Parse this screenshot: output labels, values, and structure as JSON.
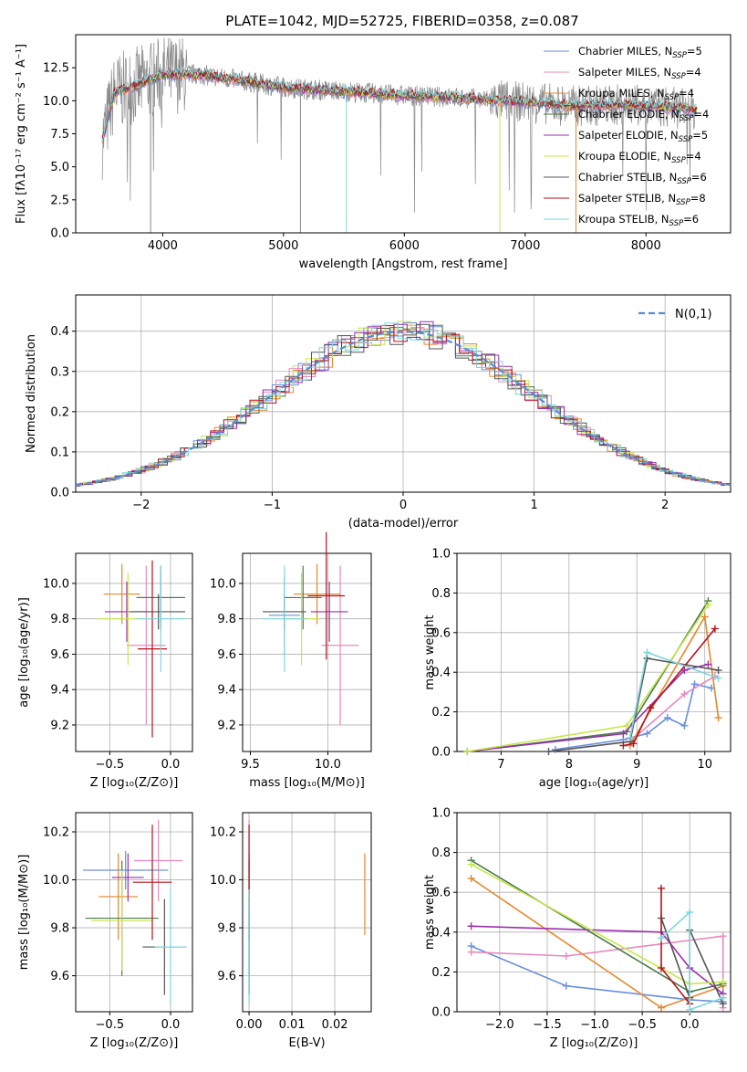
{
  "figure": {
    "title": "PLATE=1042, MJD=52725, FIBERID=0358, z=0.087"
  },
  "colors": {
    "Chabrier MILES": "#6a8fdc",
    "Salpeter MILES": "#e889bd",
    "Kroupa MILES": "#e6862a",
    "Chabrier ELODIE": "#4a7a4a",
    "Salpeter ELODIE": "#9b2fae",
    "Kroupa ELODIE": "#c8e64a",
    "Chabrier STELIB": "#555555",
    "Salpeter STELIB": "#b5121b",
    "Kroupa STELIB": "#7fd6de",
    "normal": "#5b8bd4"
  },
  "models": [
    {
      "key": "Chabrier MILES",
      "label": "Chabrier MILES, N",
      "sub": "SSP",
      "val": "=5"
    },
    {
      "key": "Salpeter MILES",
      "label": "Salpeter MILES, N",
      "sub": "SSP",
      "val": "=4"
    },
    {
      "key": "Kroupa MILES",
      "label": "Kroupa MILES, N",
      "sub": "SSP",
      "val": "=4"
    },
    {
      "key": "Chabrier ELODIE",
      "label": "Chabrier ELODIE, N",
      "sub": "SSP",
      "val": "=4"
    },
    {
      "key": "Salpeter ELODIE",
      "label": "Salpeter ELODIE, N",
      "sub": "SSP",
      "val": "=5"
    },
    {
      "key": "Kroupa ELODIE",
      "label": "Kroupa ELODIE, N",
      "sub": "SSP",
      "val": "=4"
    },
    {
      "key": "Chabrier STELIB",
      "label": "Chabrier STELIB, N",
      "sub": "SSP",
      "val": "=6"
    },
    {
      "key": "Salpeter STELIB",
      "label": "Salpeter STELIB, N",
      "sub": "SSP",
      "val": "=8"
    },
    {
      "key": "Kroupa STELIB",
      "label": "Kroupa STELIB, N",
      "sub": "SSP",
      "val": "=6"
    }
  ],
  "chart_data": [
    {
      "type": "line",
      "name": "spectrum",
      "xlabel": "wavelength [Angstrom, rest frame]",
      "ylabel": "Flux [fλ10⁻¹⁷ erg cm⁻² s⁻¹ A⁻¹]",
      "xlim": [
        3280,
        8700
      ],
      "ylim": [
        0,
        15
      ],
      "xticks": [
        4000,
        5000,
        6000,
        7000,
        8000
      ],
      "yticks": [
        0.0,
        2.5,
        5.0,
        7.5,
        10.0,
        12.5
      ],
      "continuum": {
        "x": [
          3500,
          3600,
          3800,
          4000,
          4300,
          4600,
          5000,
          5500,
          6000,
          6500,
          7000,
          7400,
          7800,
          8200,
          8400
        ],
        "y": [
          7.0,
          10.6,
          11.2,
          12.0,
          12.0,
          11.6,
          11.0,
          10.7,
          10.4,
          10.2,
          9.9,
          9.6,
          9.7,
          9.5,
          9.3
        ]
      }
    },
    {
      "type": "line",
      "name": "residual histogram",
      "xlabel": "(data-model)/error",
      "ylabel": "Normed distribution",
      "xlim": [
        -2.5,
        2.5
      ],
      "ylim": [
        0,
        0.49
      ],
      "xticks": [
        -2,
        -1,
        0,
        1,
        2
      ],
      "yticks": [
        0.0,
        0.1,
        0.2,
        0.3,
        0.4
      ],
      "legend": "N(0,1)"
    },
    {
      "type": "scatter",
      "name": "age vs Z",
      "xlabel": "Z [log₁₀(Z/Z⊙)]",
      "ylabel": "age  [log₁₀(age/yr)]",
      "xlim": [
        -0.78,
        0.18
      ],
      "ylim": [
        9.05,
        10.17
      ],
      "xticks": [
        -0.5,
        0.0
      ],
      "yticks": [
        9.2,
        9.4,
        9.6,
        9.8,
        10.0
      ],
      "points": [
        {
          "m": "Chabrier MILES",
          "x": -0.08,
          "y": 9.92,
          "xe": 0.2,
          "ye": 0.14
        },
        {
          "m": "Salpeter MILES",
          "x": -0.2,
          "y": 9.65,
          "xe": 0.16,
          "ye": 0.45
        },
        {
          "m": "Kroupa MILES",
          "x": -0.4,
          "y": 9.94,
          "xe": 0.15,
          "ye": 0.17
        },
        {
          "m": "Chabrier ELODIE",
          "x": -0.08,
          "y": 9.92,
          "xe": 0.2,
          "ye": 0.18
        },
        {
          "m": "Salpeter ELODIE",
          "x": -0.36,
          "y": 9.84,
          "xe": 0.18,
          "ye": 0.17
        },
        {
          "m": "Kroupa ELODIE",
          "x": -0.35,
          "y": 9.8,
          "xe": 0.25,
          "ye": 0.26
        },
        {
          "m": "Chabrier STELIB",
          "x": -0.1,
          "y": 9.84,
          "xe": 0.22,
          "ye": 0.1
        },
        {
          "m": "Salpeter STELIB",
          "x": -0.15,
          "y": 9.63,
          "xe": 0.12,
          "ye": 0.5
        },
        {
          "m": "Kroupa STELIB",
          "x": -0.08,
          "y": 9.8,
          "xe": 0.2,
          "ye": 0.3
        }
      ]
    },
    {
      "type": "scatter",
      "name": "age vs mass",
      "xlabel": "mass [log₁₀(M/M⊙)]",
      "ylabel": "",
      "xlim": [
        9.45,
        10.28
      ],
      "ylim": [
        9.05,
        10.17
      ],
      "xticks": [
        9.5,
        10.0
      ],
      "yticks": [
        9.2,
        9.4,
        9.6,
        9.8,
        10.0
      ],
      "points": [
        {
          "m": "Chabrier MILES",
          "x": 9.72,
          "y": 9.82,
          "xe": 0.1,
          "ye": 0.22
        },
        {
          "m": "Salpeter MILES",
          "x": 10.08,
          "y": 9.65,
          "xe": 0.12,
          "ye": 0.45
        },
        {
          "m": "Kroupa MILES",
          "x": 9.93,
          "y": 9.94,
          "xe": 0.15,
          "ye": 0.17
        },
        {
          "m": "Chabrier ELODIE",
          "x": 9.84,
          "y": 9.92,
          "xe": 0.12,
          "ye": 0.18
        },
        {
          "m": "Salpeter ELODIE",
          "x": 10.01,
          "y": 9.84,
          "xe": 0.12,
          "ye": 0.17
        },
        {
          "m": "Kroupa ELODIE",
          "x": 9.83,
          "y": 9.8,
          "xe": 0.12,
          "ye": 0.26
        },
        {
          "m": "Chabrier STELIB",
          "x": 9.72,
          "y": 9.84,
          "xe": 0.14,
          "ye": 0.1
        },
        {
          "m": "Salpeter STELIB",
          "x": 9.99,
          "y": 9.93,
          "xe": 0.12,
          "ye": 0.36
        },
        {
          "m": "Kroupa STELIB",
          "x": 9.72,
          "y": 9.8,
          "xe": 0.14,
          "ye": 0.3
        }
      ]
    },
    {
      "type": "line",
      "name": "mass weight vs age",
      "xlabel": "age  [log₁₀(age/yr)]",
      "ylabel": "mass weight",
      "xlim": [
        6.35,
        10.38
      ],
      "ylim": [
        0,
        1
      ],
      "xticks": [
        7,
        8,
        9,
        10
      ],
      "yticks": [
        0.0,
        0.2,
        0.4,
        0.6,
        0.8,
        1.0
      ],
      "series": [
        {
          "m": "Chabrier MILES",
          "x": [
            7.8,
            8.8,
            9.15,
            9.45,
            9.7,
            9.85,
            10.1
          ],
          "y": [
            0.01,
            0.06,
            0.09,
            0.17,
            0.13,
            0.34,
            0.32
          ]
        },
        {
          "m": "Salpeter MILES",
          "x": [
            8.9,
            9.7,
            10.15
          ],
          "y": [
            0.05,
            0.29,
            0.38
          ]
        },
        {
          "m": "Kroupa MILES",
          "x": [
            8.9,
            10.0,
            10.2
          ],
          "y": [
            0.03,
            0.68,
            0.17
          ]
        },
        {
          "m": "Chabrier ELODIE",
          "x": [
            6.5,
            8.85,
            10.05
          ],
          "y": [
            0.0,
            0.1,
            0.76
          ]
        },
        {
          "m": "Salpeter ELODIE",
          "x": [
            6.5,
            8.8,
            9.7,
            10.05
          ],
          "y": [
            0.0,
            0.09,
            0.41,
            0.44
          ]
        },
        {
          "m": "Kroupa ELODIE",
          "x": [
            6.5,
            8.85,
            10.05
          ],
          "y": [
            0.0,
            0.13,
            0.74
          ]
        },
        {
          "m": "Chabrier STELIB",
          "x": [
            7.7,
            8.9,
            9.15,
            10.2
          ],
          "y": [
            0.0,
            0.05,
            0.47,
            0.41
          ]
        },
        {
          "m": "Salpeter STELIB",
          "x": [
            8.8,
            8.95,
            9.2,
            10.15
          ],
          "y": [
            0.03,
            0.04,
            0.22,
            0.62
          ]
        },
        {
          "m": "Kroupa STELIB",
          "x": [
            8.9,
            9.15,
            10.2
          ],
          "y": [
            0.07,
            0.5,
            0.37
          ]
        }
      ]
    },
    {
      "type": "scatter",
      "name": "mass vs Z",
      "xlabel": "Z [log₁₀(Z/Z⊙)]",
      "ylabel": "mass [log₁₀(M/M⊙)]",
      "xlim": [
        -0.78,
        0.18
      ],
      "ylim": [
        9.45,
        10.28
      ],
      "xticks": [
        -0.5,
        0.0
      ],
      "yticks": [
        9.6,
        9.8,
        10.0,
        10.2
      ],
      "points": [
        {
          "m": "Chabrier MILES",
          "x": -0.37,
          "y": 10.04,
          "xe": 0.35,
          "ye": 0.08
        },
        {
          "m": "Salpeter MILES",
          "x": -0.1,
          "y": 10.08,
          "xe": 0.2,
          "ye": 0.17
        },
        {
          "m": "Kroupa MILES",
          "x": -0.43,
          "y": 9.93,
          "xe": 0.16,
          "ye": 0.18
        },
        {
          "m": "Chabrier ELODIE",
          "x": -0.4,
          "y": 9.84,
          "xe": 0.3,
          "ye": 0.24
        },
        {
          "m": "Salpeter ELODIE",
          "x": -0.35,
          "y": 10.01,
          "xe": 0.13,
          "ye": 0.1
        },
        {
          "m": "Kroupa ELODIE",
          "x": -0.4,
          "y": 9.83,
          "xe": 0.25,
          "ye": 0.21
        },
        {
          "m": "Chabrier STELIB",
          "x": -0.05,
          "y": 9.72,
          "xe": 0.18,
          "ye": 0.2
        },
        {
          "m": "Salpeter STELIB",
          "x": -0.15,
          "y": 9.99,
          "xe": 0.16,
          "ye": 0.24
        },
        {
          "m": "Kroupa STELIB",
          "x": 0.0,
          "y": 9.72,
          "xe": 0.13,
          "ye": 0.24
        }
      ]
    },
    {
      "type": "scatter",
      "name": "mass vs E(B-V)",
      "xlabel": "E(B-V)",
      "ylabel": "",
      "xlim": [
        -0.0015,
        0.0285
      ],
      "ylim": [
        9.45,
        10.28
      ],
      "xticks": [
        0.0,
        0.01,
        0.02
      ],
      "yticks": [
        9.6,
        9.8,
        10.0,
        10.2
      ],
      "points": [
        {
          "m": "Chabrier MILES",
          "x": 0.0,
          "y": 9.72,
          "xe": 0,
          "ye": 0.2
        },
        {
          "m": "Salpeter MILES",
          "x": 0.0,
          "y": 10.08,
          "xe": 0,
          "ye": 0.17
        },
        {
          "m": "Kroupa MILES",
          "x": 0.027,
          "y": 9.94,
          "xe": 0,
          "ye": 0.17
        },
        {
          "m": "Chabrier ELODIE",
          "x": 0.0,
          "y": 9.84,
          "xe": 0,
          "ye": 0.24
        },
        {
          "m": "Salpeter ELODIE",
          "x": 0.0,
          "y": 10.01,
          "xe": 0,
          "ye": 0.1
        },
        {
          "m": "Kroupa ELODIE",
          "x": 0.0,
          "y": 9.83,
          "xe": 0,
          "ye": 0.21
        },
        {
          "m": "Chabrier STELIB",
          "x": 0.0,
          "y": 9.72,
          "xe": 0,
          "ye": 0.2
        },
        {
          "m": "Salpeter STELIB",
          "x": 0.0,
          "y": 9.99,
          "xe": 0,
          "ye": 0.24
        },
        {
          "m": "Kroupa STELIB",
          "x": 0.0,
          "y": 9.72,
          "xe": 0,
          "ye": 0.24
        }
      ]
    },
    {
      "type": "line",
      "name": "mass weight vs Z",
      "xlabel": "Z [log₁₀(Z/Z⊙)]",
      "ylabel": "mass weight",
      "xlim": [
        -2.45,
        0.43
      ],
      "ylim": [
        0,
        1
      ],
      "xticks": [
        -2.0,
        -1.5,
        -1.0,
        -0.5,
        0.0
      ],
      "yticks": [
        0.0,
        0.2,
        0.4,
        0.6,
        0.8,
        1.0
      ],
      "series": [
        {
          "m": "Chabrier MILES",
          "x": [
            -2.3,
            -1.3,
            0.0,
            0.35
          ],
          "y": [
            0.33,
            0.13,
            0.06,
            0.05
          ]
        },
        {
          "m": "Salpeter MILES",
          "x": [
            -2.3,
            -1.3,
            0.35,
            0.35
          ],
          "y": [
            0.3,
            0.28,
            0.38,
            0.02
          ]
        },
        {
          "m": "Kroupa MILES",
          "x": [
            -2.3,
            -0.3,
            0.35
          ],
          "y": [
            0.67,
            0.02,
            0.13
          ]
        },
        {
          "m": "Chabrier ELODIE",
          "x": [
            -2.3,
            0.0,
            0.35
          ],
          "y": [
            0.76,
            0.1,
            0.14
          ]
        },
        {
          "m": "Salpeter ELODIE",
          "x": [
            -2.3,
            -0.3,
            0.0,
            0.35
          ],
          "y": [
            0.43,
            0.4,
            0.22,
            0.09
          ]
        },
        {
          "m": "Kroupa ELODIE",
          "x": [
            -2.3,
            0.0,
            0.35
          ],
          "y": [
            0.74,
            0.14,
            0.15
          ]
        },
        {
          "m": "Chabrier STELIB",
          "x": [
            -0.3,
            0.0,
            0.0,
            0.35
          ],
          "y": [
            0.47,
            0.07,
            0.41,
            0.04
          ]
        },
        {
          "m": "Salpeter STELIB",
          "x": [
            -0.3,
            -0.3,
            0.0
          ],
          "y": [
            0.62,
            0.22,
            0.04
          ]
        },
        {
          "m": "Kroupa STELIB",
          "x": [
            -0.3,
            0.0,
            0.0,
            0.35
          ],
          "y": [
            0.37,
            0.5,
            0.01,
            0.07
          ]
        }
      ]
    }
  ]
}
